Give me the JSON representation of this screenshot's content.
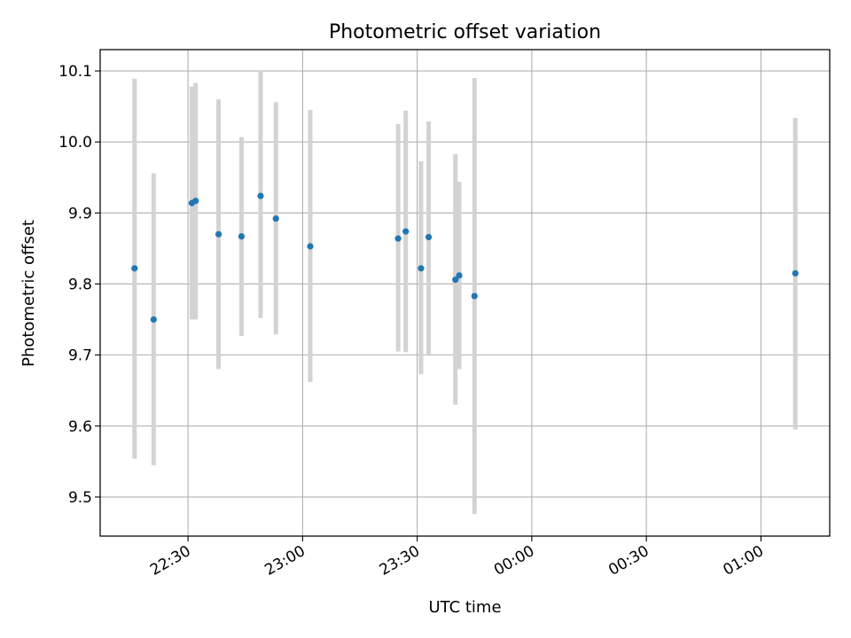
{
  "chart_data": {
    "type": "scatter",
    "title": "Photometric offset variation",
    "xlabel": "UTC time",
    "ylabel": "Photometric offset",
    "xlim": [
      "22:07",
      "01:18"
    ],
    "ylim": [
      9.445,
      10.13
    ],
    "x_ticks": [
      "22:30",
      "23:00",
      "23:30",
      "00:00",
      "00:30",
      "01:00"
    ],
    "y_ticks": [
      "9.5",
      "9.6",
      "9.7",
      "9.8",
      "9.9",
      "10.0",
      "10.1"
    ],
    "grid": true,
    "colors": {
      "point": "#1f77b4",
      "errorbar": "#d3d3d3",
      "grid": "#b0b0b0"
    },
    "points": [
      {
        "x": "22:16",
        "y": 9.822,
        "low": 9.554,
        "high": 10.089
      },
      {
        "x": "22:21",
        "y": 9.75,
        "low": 9.545,
        "high": 9.956
      },
      {
        "x": "22:31",
        "y": 9.914,
        "low": 9.75,
        "high": 10.078
      },
      {
        "x": "22:32",
        "y": 9.917,
        "low": 9.75,
        "high": 10.083
      },
      {
        "x": "22:38",
        "y": 9.87,
        "low": 9.68,
        "high": 10.06
      },
      {
        "x": "22:44",
        "y": 9.867,
        "low": 9.727,
        "high": 10.007
      },
      {
        "x": "22:49",
        "y": 9.924,
        "low": 9.752,
        "high": 10.1
      },
      {
        "x": "22:53",
        "y": 9.892,
        "low": 9.729,
        "high": 10.056
      },
      {
        "x": "23:02",
        "y": 9.853,
        "low": 9.662,
        "high": 10.045
      },
      {
        "x": "23:25",
        "y": 9.864,
        "low": 9.705,
        "high": 10.025
      },
      {
        "x": "23:27",
        "y": 9.874,
        "low": 9.704,
        "high": 10.044
      },
      {
        "x": "23:31",
        "y": 9.822,
        "low": 9.673,
        "high": 9.973
      },
      {
        "x": "23:33",
        "y": 9.866,
        "low": 9.701,
        "high": 10.029
      },
      {
        "x": "23:40",
        "y": 9.806,
        "low": 9.63,
        "high": 9.983
      },
      {
        "x": "23:41",
        "y": 9.812,
        "low": 9.68,
        "high": 9.944
      },
      {
        "x": "23:45",
        "y": 9.783,
        "low": 9.476,
        "high": 10.09
      },
      {
        "x": "01:09",
        "y": 9.815,
        "low": 9.595,
        "high": 10.034
      }
    ]
  }
}
